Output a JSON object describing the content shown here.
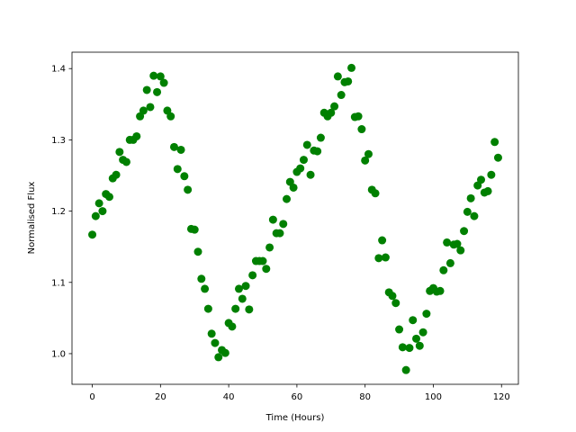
{
  "chart_data": {
    "type": "scatter",
    "xlabel": "Time (Hours)",
    "ylabel": "Normalised Flux",
    "x": [
      0,
      1,
      2,
      3,
      4,
      5,
      6,
      7,
      8,
      9,
      10,
      11,
      12,
      13,
      14,
      15,
      16,
      17,
      18,
      19,
      20,
      21,
      22,
      23,
      24,
      25,
      26,
      27,
      28,
      29,
      30,
      31,
      32,
      33,
      34,
      35,
      36,
      37,
      38,
      39,
      40,
      41,
      42,
      43,
      44,
      45,
      46,
      47,
      48,
      49,
      50,
      51,
      52,
      53,
      54,
      55,
      56,
      57,
      58,
      59,
      60,
      61,
      62,
      63,
      64,
      65,
      66,
      67,
      68,
      69,
      70,
      71,
      72,
      73,
      74,
      75,
      76,
      77,
      78,
      79,
      80,
      81,
      82,
      83,
      84,
      85,
      86,
      87,
      88,
      89,
      90,
      91,
      92,
      93,
      94,
      95,
      96,
      97,
      98,
      99,
      100,
      101,
      102,
      103,
      104,
      105,
      106,
      107,
      108,
      109,
      110,
      111,
      112,
      113,
      114,
      115,
      116,
      117,
      118,
      119
    ],
    "values": [
      1.167,
      1.193,
      1.211,
      1.2,
      1.224,
      1.22,
      1.246,
      1.251,
      1.283,
      1.272,
      1.269,
      1.3,
      1.3,
      1.305,
      1.333,
      1.341,
      1.37,
      1.346,
      1.39,
      1.367,
      1.389,
      1.38,
      1.341,
      1.333,
      1.29,
      1.259,
      1.286,
      1.249,
      1.23,
      1.175,
      1.174,
      1.143,
      1.105,
      1.091,
      1.063,
      1.028,
      1.015,
      0.995,
      1.005,
      1.001,
      1.043,
      1.038,
      1.063,
      1.091,
      1.077,
      1.095,
      1.062,
      1.11,
      1.13,
      1.13,
      1.13,
      1.119,
      1.149,
      1.188,
      1.169,
      1.169,
      1.182,
      1.217,
      1.241,
      1.233,
      1.255,
      1.26,
      1.272,
      1.293,
      1.251,
      1.285,
      1.284,
      1.303,
      1.338,
      1.333,
      1.338,
      1.347,
      1.389,
      1.363,
      1.381,
      1.382,
      1.401,
      1.332,
      1.333,
      1.315,
      1.271,
      1.28,
      1.23,
      1.225,
      1.134,
      1.159,
      1.135,
      1.086,
      1.081,
      1.071,
      1.034,
      1.009,
      0.977,
      1.008,
      1.047,
      1.021,
      1.011,
      1.03,
      1.056,
      1.088,
      1.092,
      1.087,
      1.088,
      1.117,
      1.156,
      1.127,
      1.153,
      1.154,
      1.145,
      1.172,
      1.199,
      1.218,
      1.193,
      1.236,
      1.244,
      1.226,
      1.228,
      1.251,
      1.297,
      1.275
    ],
    "color": "#008000",
    "xlim": [
      -5.95,
      124.95
    ],
    "xticks": [
      0,
      20,
      40,
      60,
      80,
      100,
      120
    ],
    "ylim": [
      0.957,
      1.423
    ],
    "yticks": [
      {
        "value": 1,
        "label": "1.0"
      },
      1.1,
      1.2,
      1.3,
      1.4
    ],
    "grid": false
  }
}
